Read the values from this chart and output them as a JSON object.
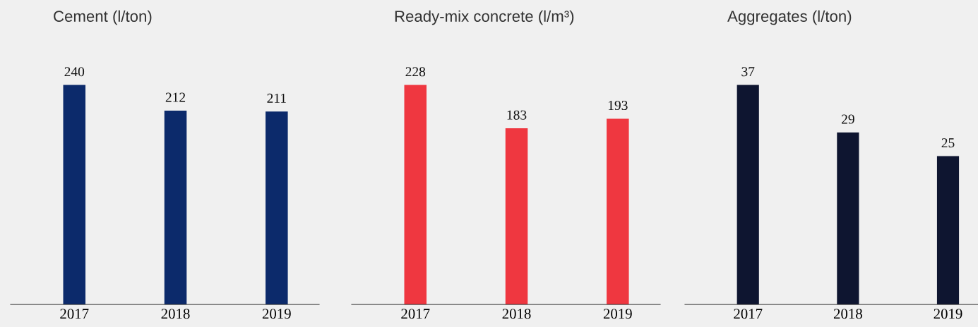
{
  "chart_data": [
    {
      "type": "bar",
      "title": "Cement (l/ton)",
      "categories": [
        "2017",
        "2018",
        "2019"
      ],
      "values": [
        240,
        212,
        211
      ],
      "color": "#0c2a6b",
      "data_labels": true,
      "tick_labels": "x",
      "grid": false,
      "legend": false
    },
    {
      "type": "bar",
      "title": "Ready-mix concrete (l/m³)",
      "categories": [
        "2017",
        "2018",
        "2019"
      ],
      "values": [
        228,
        183,
        193
      ],
      "color": "#ef3740",
      "data_labels": true,
      "tick_labels": "x",
      "grid": false,
      "legend": false
    },
    {
      "type": "bar",
      "title": "Aggregates (l/ton)",
      "categories": [
        "2017",
        "2018",
        "2019"
      ],
      "values": [
        37,
        29,
        25
      ],
      "color": "#0e1530",
      "data_labels": true,
      "tick_labels": "x",
      "grid": false,
      "legend": false
    }
  ]
}
